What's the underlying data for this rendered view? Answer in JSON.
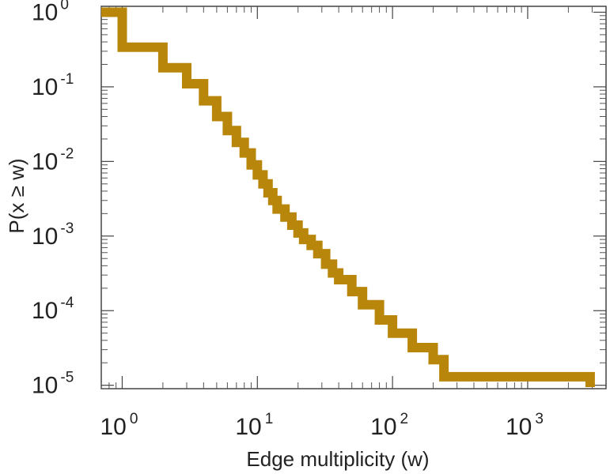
{
  "chart_data": {
    "type": "line",
    "style": "step",
    "xscale": "log",
    "yscale": "log",
    "xlabel": "Edge multiplicity (w)",
    "ylabel": "P(x ≥ w)",
    "xlim": [
      0.7,
      3800
    ],
    "ylim": [
      9e-06,
      1.2
    ],
    "xticks": [
      {
        "value": 1,
        "base": "10",
        "exp": "0"
      },
      {
        "value": 10,
        "base": "10",
        "exp": "1"
      },
      {
        "value": 100,
        "base": "10",
        "exp": "2"
      },
      {
        "value": 1000,
        "base": "10",
        "exp": "3"
      }
    ],
    "yticks": [
      {
        "value": 1,
        "base": "10",
        "exp": "0"
      },
      {
        "value": 0.1,
        "base": "10",
        "exp": "-1"
      },
      {
        "value": 0.01,
        "base": "10",
        "exp": "-2"
      },
      {
        "value": 0.001,
        "base": "10",
        "exp": "-3"
      },
      {
        "value": 0.0001,
        "base": "10",
        "exp": "-4"
      },
      {
        "value": 1e-05,
        "base": "10",
        "exp": "-5"
      }
    ],
    "grid": false,
    "legend": "none",
    "line_color": "#b8860b",
    "series": [
      {
        "x": [
          0.7,
          1,
          2,
          3,
          4,
          5,
          6,
          7,
          8,
          9,
          10,
          11,
          12,
          13,
          14,
          16,
          18,
          20,
          22,
          25,
          28,
          32,
          36,
          40,
          50,
          60,
          80,
          100,
          140,
          200,
          240,
          2900
        ],
        "y": [
          1.0,
          0.34,
          0.18,
          0.11,
          0.065,
          0.04,
          0.026,
          0.018,
          0.013,
          0.009,
          0.0066,
          0.005,
          0.0038,
          0.003,
          0.0023,
          0.0018,
          0.0014,
          0.0011,
          0.0009,
          0.00075,
          0.00058,
          0.00042,
          0.00032,
          0.00026,
          0.00018,
          0.00012,
          7.5e-05,
          5e-05,
          3.2e-05,
          2.2e-05,
          1.3e-05,
          9.5e-06
        ]
      }
    ]
  }
}
